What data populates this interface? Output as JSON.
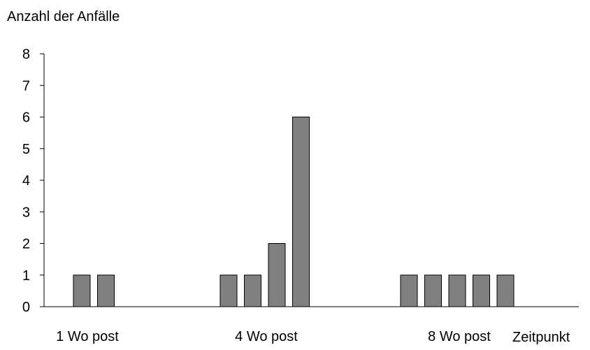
{
  "chart_data": {
    "type": "bar",
    "title": "",
    "ylabel": "Anzahl der Anfälle",
    "xlabel": "Zeitpunkt",
    "ylim": [
      0,
      8
    ],
    "yticks": [
      0,
      1,
      2,
      3,
      4,
      5,
      6,
      7,
      8
    ],
    "grid": false,
    "legend": "none",
    "bar_color": "#808080",
    "bar_edge_color": "#000000",
    "groups": [
      {
        "label": "1 Wo post",
        "values": [
          1,
          1
        ]
      },
      {
        "label": "4 Wo post",
        "values": [
          1,
          1,
          2,
          6
        ]
      },
      {
        "label": "8 Wo post",
        "values": [
          1,
          1,
          1,
          1,
          1
        ]
      }
    ]
  }
}
